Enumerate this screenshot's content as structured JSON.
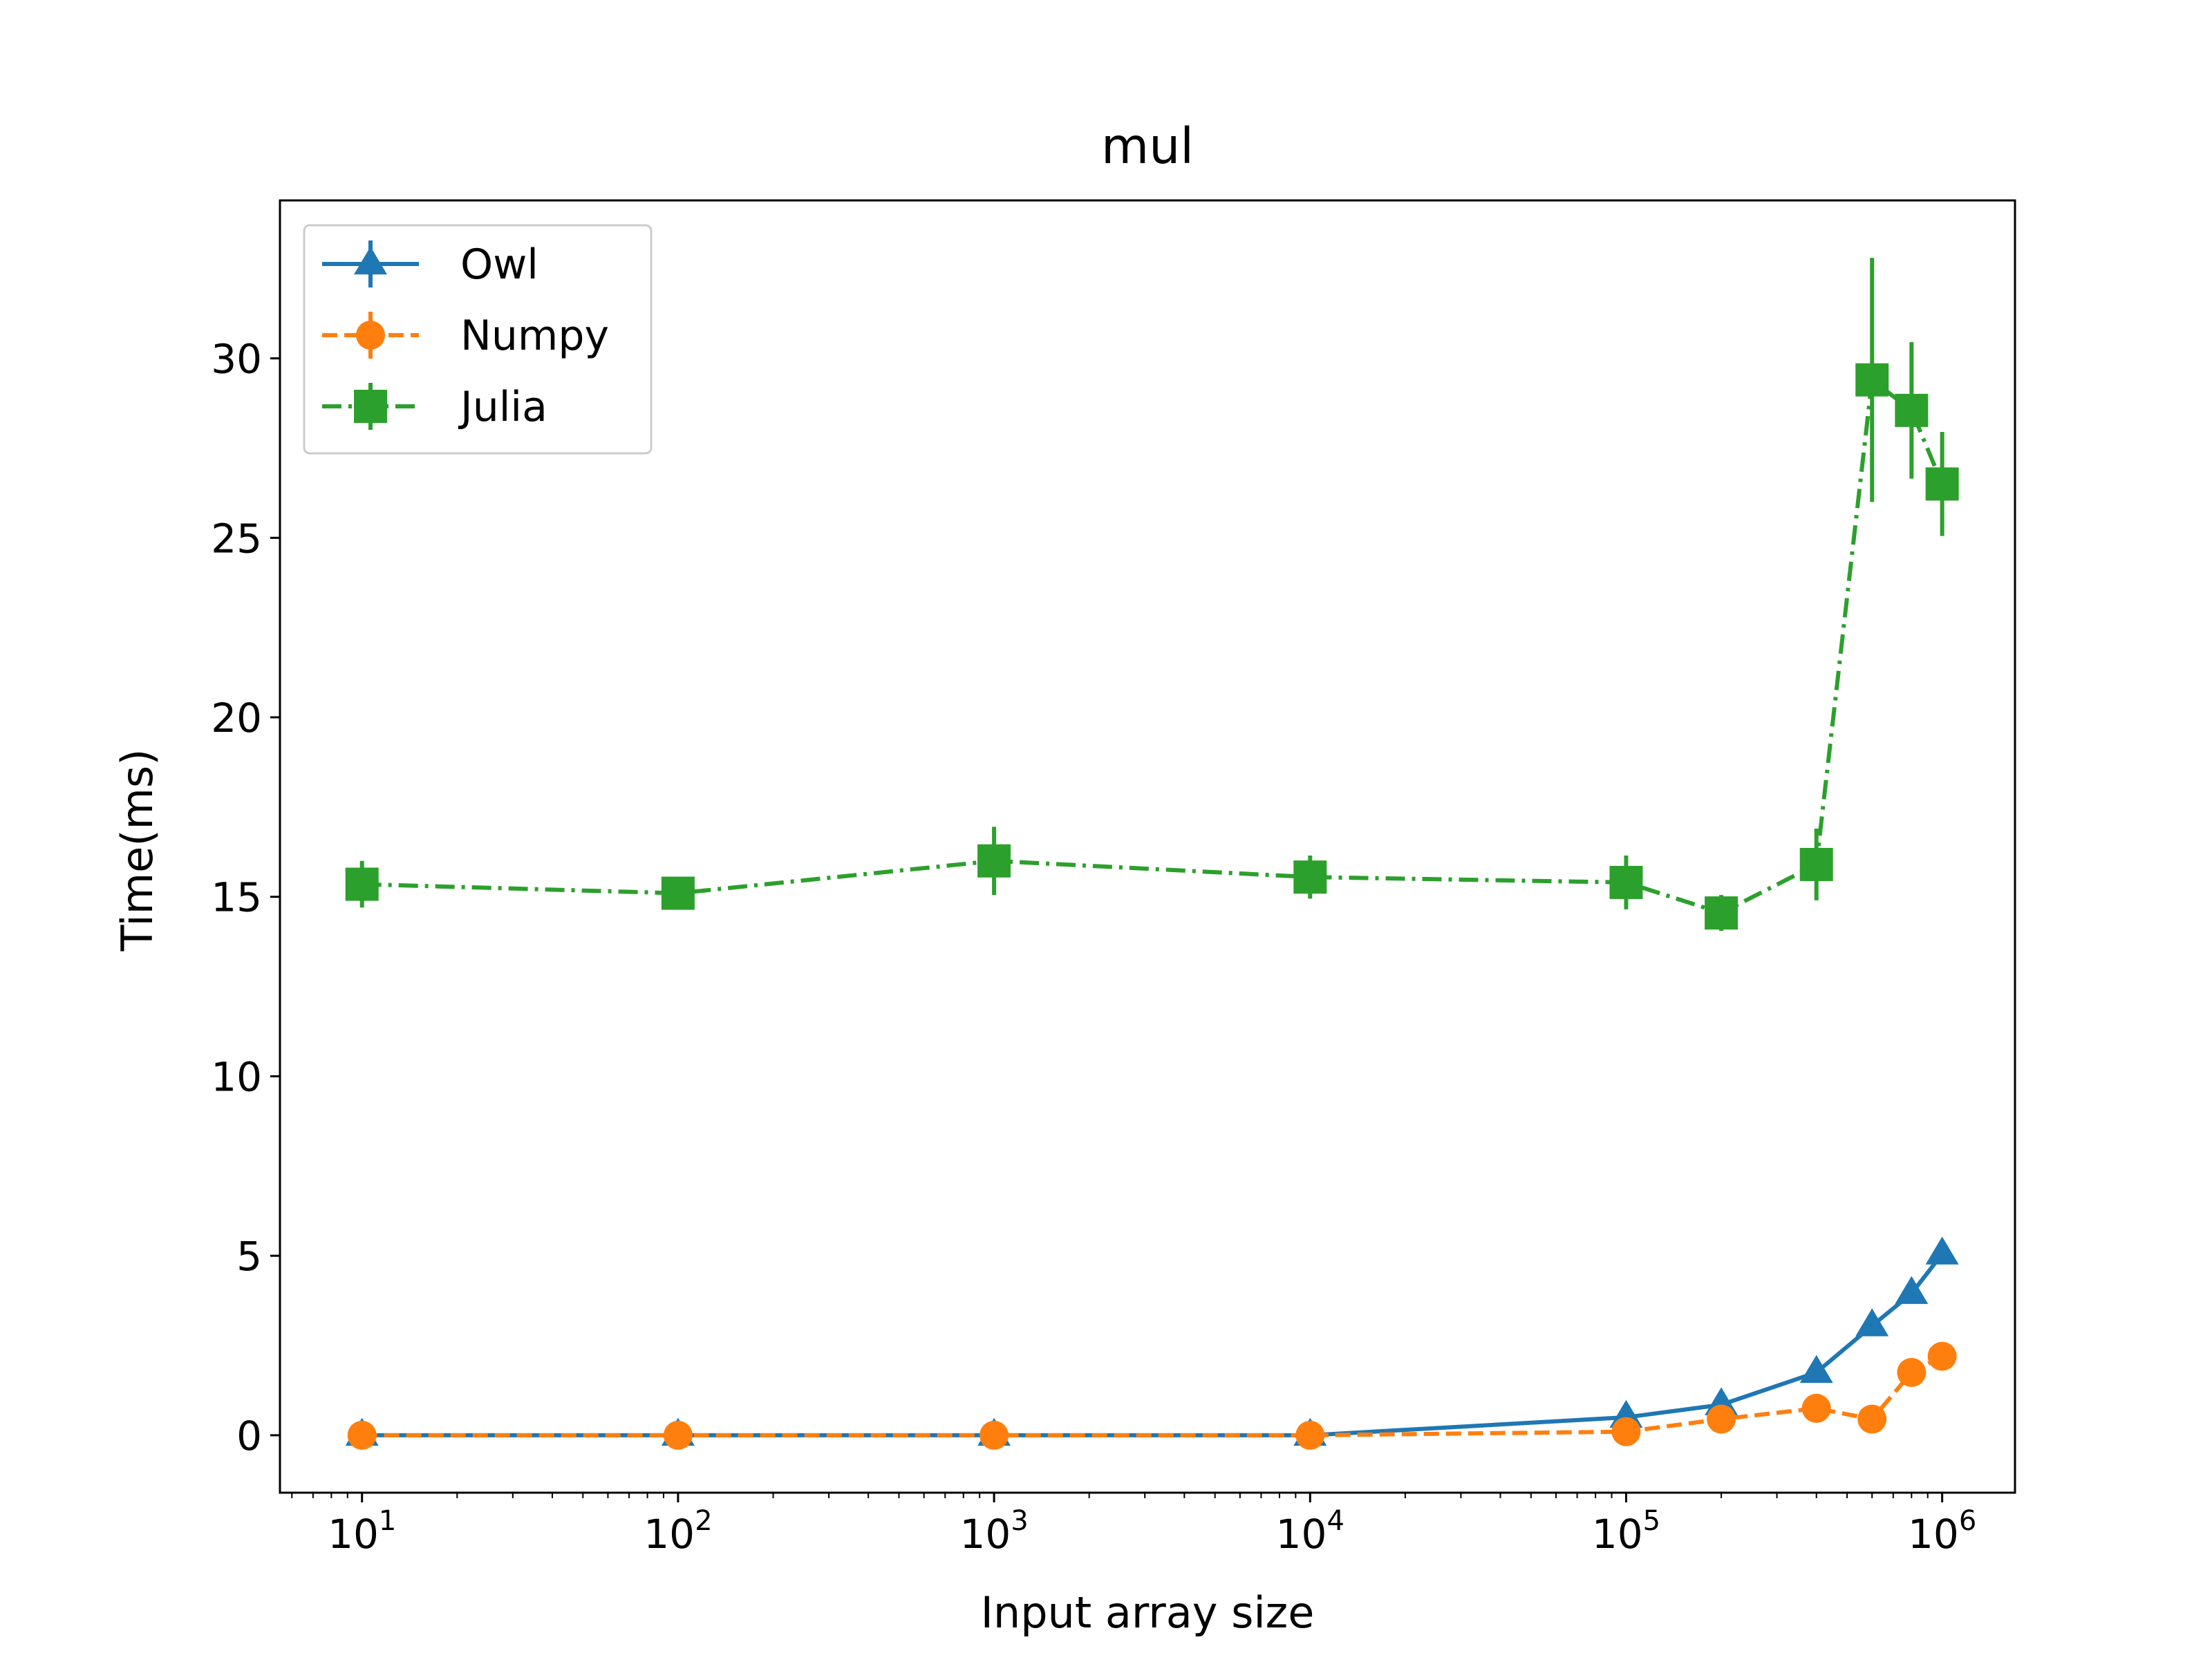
{
  "chart_data": {
    "type": "line",
    "title": "mul",
    "xlabel": "Input array size",
    "ylabel": "Time(ms)",
    "xscale": "log",
    "xlim": [
      5.5,
      1700000
    ],
    "ylim": [
      -1.6,
      34.4
    ],
    "x": [
      10,
      100,
      1000,
      10000,
      100000,
      200000,
      400000,
      600000,
      800000,
      1000000
    ],
    "x_ticks": [
      {
        "value": 10,
        "base": "10",
        "exp": "1"
      },
      {
        "value": 100,
        "base": "10",
        "exp": "2"
      },
      {
        "value": 1000,
        "base": "10",
        "exp": "3"
      },
      {
        "value": 10000,
        "base": "10",
        "exp": "4"
      },
      {
        "value": 100000,
        "base": "10",
        "exp": "5"
      },
      {
        "value": 1000000,
        "base": "10",
        "exp": "6"
      }
    ],
    "y_ticks": [
      0,
      5,
      10,
      15,
      20,
      25,
      30
    ],
    "grid": false,
    "legend_position": "upper-left",
    "series": [
      {
        "name": "Owl",
        "color": "#1f77b4",
        "marker": "triangle",
        "linestyle": "solid",
        "values": [
          0.0,
          0.0,
          0.0,
          0.0,
          0.5,
          0.85,
          1.75,
          3.05,
          3.95,
          5.05
        ],
        "errors": [
          0.02,
          0.02,
          0.02,
          0.02,
          0.05,
          0.08,
          0.15,
          0.2,
          0.2,
          0.25
        ]
      },
      {
        "name": "Numpy",
        "color": "#ff7f0e",
        "marker": "circle",
        "linestyle": "dashed",
        "values": [
          0.0,
          0.0,
          0.0,
          0.0,
          0.1,
          0.45,
          0.75,
          0.45,
          1.75,
          2.2
        ],
        "errors": [
          0.02,
          0.02,
          0.02,
          0.02,
          0.05,
          0.1,
          0.1,
          0.1,
          0.15,
          0.15
        ]
      },
      {
        "name": "Julia",
        "color": "#2ca02c",
        "marker": "square",
        "linestyle": "dashdot",
        "values": [
          15.35,
          15.1,
          16.0,
          15.55,
          15.4,
          14.55,
          15.9,
          29.4,
          28.55,
          26.5
        ],
        "errors": [
          0.65,
          0.3,
          0.95,
          0.6,
          0.75,
          0.5,
          1.0,
          3.4,
          1.9,
          1.45
        ]
      }
    ]
  }
}
